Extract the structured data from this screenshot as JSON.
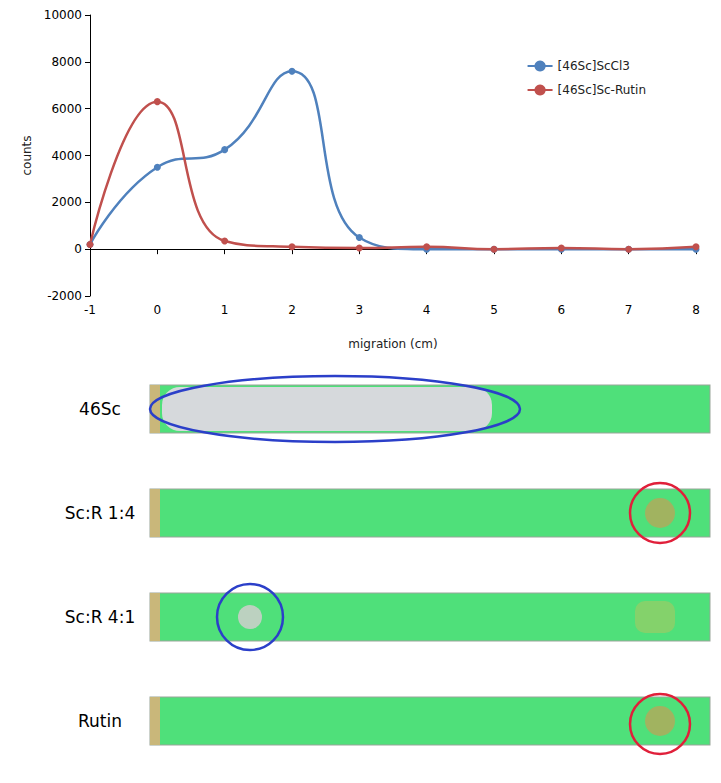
{
  "chart_data": {
    "type": "line",
    "x_label": "migration (cm)",
    "y_label": "counts",
    "x": [
      -1,
      0,
      1,
      2,
      3,
      4,
      5,
      6,
      7,
      8
    ],
    "series": [
      {
        "name": "[46Sc]ScCl3",
        "color": "#4f81bd",
        "marker": "circle",
        "line_style": "solid",
        "values": [
          200,
          3500,
          4250,
          7600,
          500,
          0,
          0,
          0,
          0,
          0
        ]
      },
      {
        "name": "[46Sc]Sc-Rutin",
        "color": "#c0504d",
        "marker": "circle",
        "line_style": "solid",
        "values": [
          200,
          6300,
          350,
          100,
          50,
          100,
          0,
          50,
          0,
          100
        ]
      }
    ],
    "xlim": [
      -1,
      8
    ],
    "xticks": [
      -1,
      0,
      1,
      2,
      3,
      4,
      5,
      6,
      7,
      8
    ],
    "ylim": [
      -2000,
      10000
    ],
    "yticks": [
      -2000,
      0,
      2000,
      4000,
      6000,
      8000,
      10000
    ],
    "grid": false,
    "legend": "upper right"
  },
  "strips": [
    {
      "label": "46Sc"
    },
    {
      "label": "Sc:R 1:4"
    },
    {
      "label": "Sc:R 4:1"
    },
    {
      "label": "Rutin"
    }
  ]
}
